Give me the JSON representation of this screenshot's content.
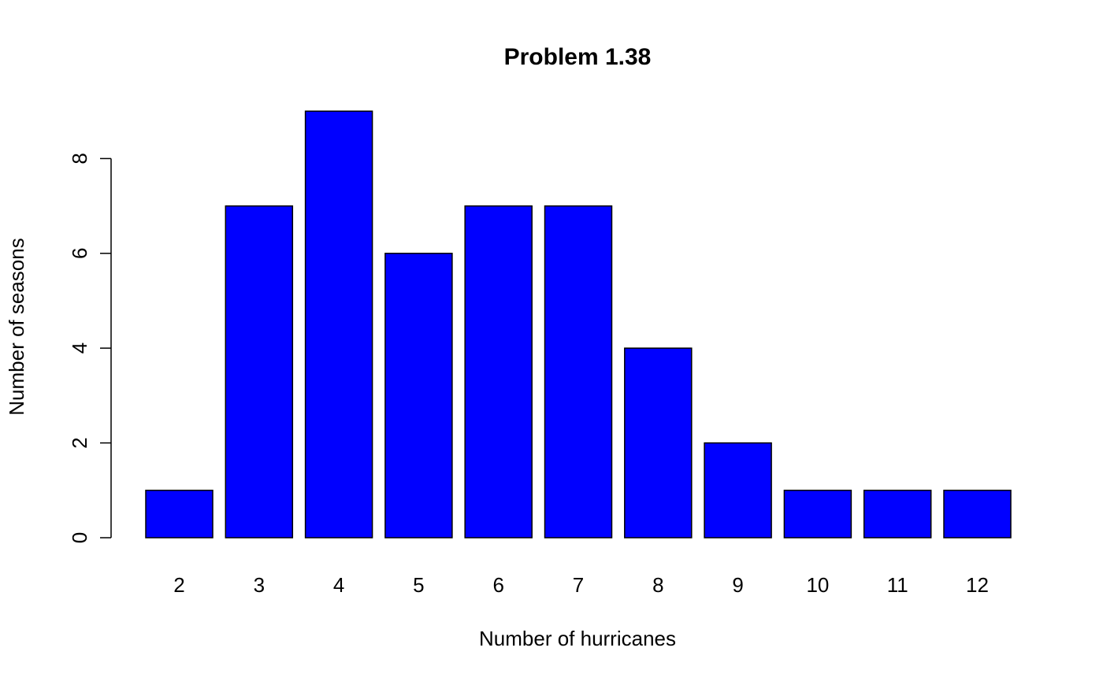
{
  "chart_data": {
    "type": "bar",
    "title": "Problem 1.38",
    "xlabel": "Number of hurricanes",
    "ylabel": "Number of seasons",
    "categories": [
      "2",
      "3",
      "4",
      "5",
      "6",
      "7",
      "8",
      "9",
      "10",
      "11",
      "12"
    ],
    "values": [
      1,
      7,
      9,
      6,
      7,
      7,
      4,
      2,
      1,
      1,
      1
    ],
    "ylim": [
      0,
      9
    ],
    "yticks": [
      0,
      2,
      4,
      6,
      8
    ],
    "grid": false,
    "bar_color": "#0000ff",
    "edge_color": "#000000"
  }
}
